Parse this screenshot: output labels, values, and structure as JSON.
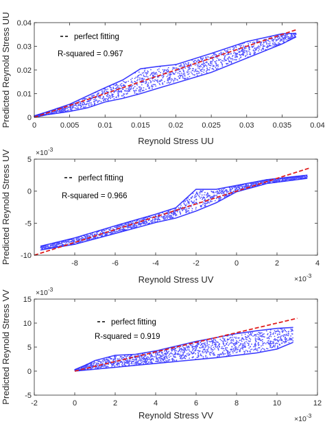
{
  "colors": {
    "scatter": "#1a1aff",
    "fit": "#e01b1b",
    "axis": "#262626",
    "background": "#ffffff"
  },
  "chart_data": [
    {
      "type": "scatter",
      "xlabel": "Reynold Stress UU",
      "ylabel": "Predicted Reynold Stress UU",
      "x_exponent": "",
      "y_exponent": "",
      "xlim": [
        0,
        0.04
      ],
      "ylim": [
        0,
        0.04
      ],
      "xticks": [
        0,
        0.005,
        0.01,
        0.015,
        0.02,
        0.025,
        0.03,
        0.035,
        0.04
      ],
      "xtick_labels": [
        "0",
        "0.005",
        "0.01",
        "0.015",
        "0.02",
        "0.025",
        "0.03",
        "0.035",
        "0.04"
      ],
      "yticks": [
        0,
        0.01,
        0.02,
        0.03,
        0.04
      ],
      "ytick_labels": [
        "0",
        "0.01",
        "0.02",
        "0.03",
        "0.04"
      ],
      "fit_line": {
        "name": "perfect fitting",
        "x": [
          0,
          0.037
        ],
        "y": [
          0,
          0.037
        ]
      },
      "r_squared_label": "R-squared = 0.967",
      "legend_placement": "top-left",
      "series_band": {
        "x": [
          0,
          0.002,
          0.005,
          0.0075,
          0.01,
          0.0125,
          0.015,
          0.0175,
          0.02,
          0.025,
          0.03,
          0.035,
          0.037
        ],
        "y_low": [
          0,
          0.0012,
          0.0025,
          0.004,
          0.0065,
          0.008,
          0.01,
          0.0123,
          0.0145,
          0.019,
          0.025,
          0.031,
          0.034
        ],
        "y_high": [
          0.0006,
          0.0025,
          0.0055,
          0.009,
          0.0125,
          0.0158,
          0.0205,
          0.0215,
          0.0223,
          0.027,
          0.032,
          0.0353,
          0.0355
        ]
      }
    },
    {
      "type": "scatter",
      "xlabel": "Reynold Stress UV",
      "ylabel": "Predicted Reynold Stress UV",
      "x_exponent": "×10^-3",
      "y_exponent": "×10^-3",
      "xlim": [
        -10,
        4
      ],
      "ylim": [
        -10,
        5
      ],
      "xticks": [
        -8,
        -6,
        -4,
        -2,
        0,
        2,
        4
      ],
      "xtick_labels": [
        "-8",
        "-6",
        "-4",
        "-2",
        "0",
        "2",
        "4"
      ],
      "yticks": [
        -10,
        -5,
        0,
        5
      ],
      "ytick_labels": [
        "-10",
        "-5",
        "0",
        "5"
      ],
      "fit_line": {
        "name": "perfect fitting",
        "x": [
          -10,
          3.6
        ],
        "y": [
          -10,
          3.6
        ]
      },
      "r_squared_label": "R-squared = 0.966",
      "legend_placement": "top-left",
      "series_band": {
        "x": [
          -9.7,
          -8,
          -6,
          -4,
          -3,
          -2,
          -1,
          0,
          1.5,
          3.5
        ],
        "y_low": [
          -9.2,
          -8.3,
          -6.6,
          -4.9,
          -4.2,
          -3.1,
          -1.8,
          -0.1,
          1.2,
          2
        ],
        "y_high": [
          -8.6,
          -7.3,
          -5.4,
          -3.6,
          -2.6,
          0.3,
          0.3,
          0.9,
          1.8,
          2.5
        ]
      }
    },
    {
      "type": "scatter",
      "xlabel": "Reynold Stress VV",
      "ylabel": "Predicted Reynold Stress VV",
      "x_exponent": "×10^-3",
      "y_exponent": "×10^-3",
      "xlim": [
        -2,
        12
      ],
      "ylim": [
        -5,
        15
      ],
      "xticks": [
        -2,
        0,
        2,
        4,
        6,
        8,
        10,
        12
      ],
      "xtick_labels": [
        "-2",
        "0",
        "2",
        "4",
        "6",
        "8",
        "10",
        "12"
      ],
      "yticks": [
        -5,
        0,
        5,
        10,
        15
      ],
      "ytick_labels": [
        "-5",
        "0",
        "5",
        "10",
        "15"
      ],
      "fit_line": {
        "name": "perfect fitting",
        "x": [
          0,
          11
        ],
        "y": [
          0,
          11
        ]
      },
      "r_squared_label": "R-squared = 0.919",
      "legend_placement": "top-left",
      "series_band": {
        "x": [
          0,
          0.5,
          1,
          2,
          3,
          4,
          5,
          6,
          7,
          8,
          9,
          10,
          10.8
        ],
        "y_low": [
          0,
          0.2,
          0.4,
          0.8,
          1.2,
          1.6,
          2,
          2.4,
          2.8,
          3.3,
          3.8,
          4.6,
          6
        ],
        "y_high": [
          0.3,
          1.2,
          2.2,
          3.3,
          3.5,
          4.2,
          5.2,
          6.2,
          7,
          7.8,
          8.4,
          8.9,
          9.1
        ]
      }
    }
  ]
}
